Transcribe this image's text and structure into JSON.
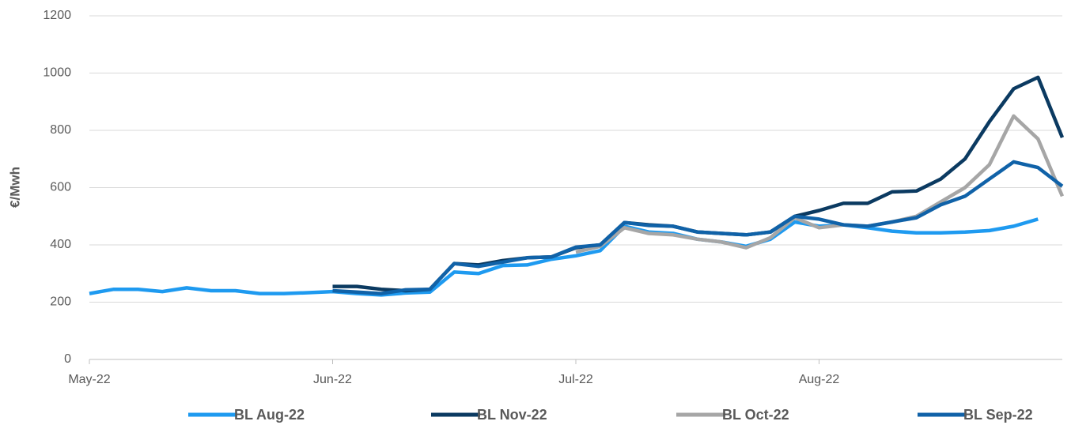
{
  "chart_data": {
    "type": "line",
    "y_label": "€/Mwh",
    "categories": [
      "May-22",
      null,
      null,
      null,
      null,
      null,
      null,
      null,
      null,
      null,
      "Jun-22",
      null,
      null,
      null,
      null,
      null,
      null,
      null,
      null,
      null,
      "Jul-22",
      null,
      null,
      null,
      null,
      null,
      null,
      null,
      null,
      null,
      "Aug-22",
      null,
      null,
      null,
      null,
      null,
      null,
      null,
      null,
      null,
      null
    ],
    "series": [
      {
        "name": "BL Aug-22",
        "color": "#1e9af0",
        "values": [
          230,
          245,
          245,
          237,
          250,
          240,
          240,
          230,
          230,
          233,
          237,
          230,
          225,
          232,
          235,
          305,
          300,
          328,
          330,
          350,
          362,
          380,
          465,
          445,
          440,
          420,
          410,
          395,
          420,
          480,
          465,
          470,
          460,
          448,
          442,
          442,
          445,
          450,
          465,
          490,
          null
        ]
      },
      {
        "name": "BL Nov-22",
        "color": "#0b3a61",
        "values": [
          null,
          null,
          null,
          null,
          null,
          null,
          null,
          null,
          null,
          null,
          255,
          255,
          245,
          240,
          245,
          335,
          330,
          345,
          355,
          358,
          390,
          400,
          478,
          470,
          465,
          445,
          440,
          435,
          445,
          500,
          520,
          545,
          545,
          585,
          588,
          630,
          700,
          830,
          945,
          985,
          775
        ]
      },
      {
        "name": "BL Oct-22",
        "color": "#a6a6a6",
        "values": [
          null,
          null,
          null,
          null,
          null,
          null,
          null,
          null,
          null,
          null,
          null,
          null,
          null,
          null,
          null,
          null,
          null,
          null,
          null,
          null,
          375,
          395,
          460,
          440,
          435,
          420,
          410,
          390,
          425,
          495,
          460,
          470,
          465,
          480,
          500,
          550,
          600,
          680,
          850,
          770,
          570
        ]
      },
      {
        "name": "BL Sep-22",
        "color": "#1062a8",
        "values": [
          null,
          null,
          null,
          null,
          null,
          null,
          null,
          null,
          null,
          null,
          240,
          235,
          230,
          243,
          245,
          335,
          325,
          340,
          355,
          358,
          392,
          400,
          478,
          468,
          465,
          445,
          440,
          435,
          445,
          500,
          490,
          470,
          465,
          480,
          495,
          540,
          570,
          630,
          690,
          670,
          605
        ]
      }
    ],
    "ylim": [
      0,
      1200
    ],
    "yticks": [
      0,
      200,
      400,
      600,
      800,
      1000,
      1200
    ],
    "grid": true,
    "legend": "bottom"
  }
}
